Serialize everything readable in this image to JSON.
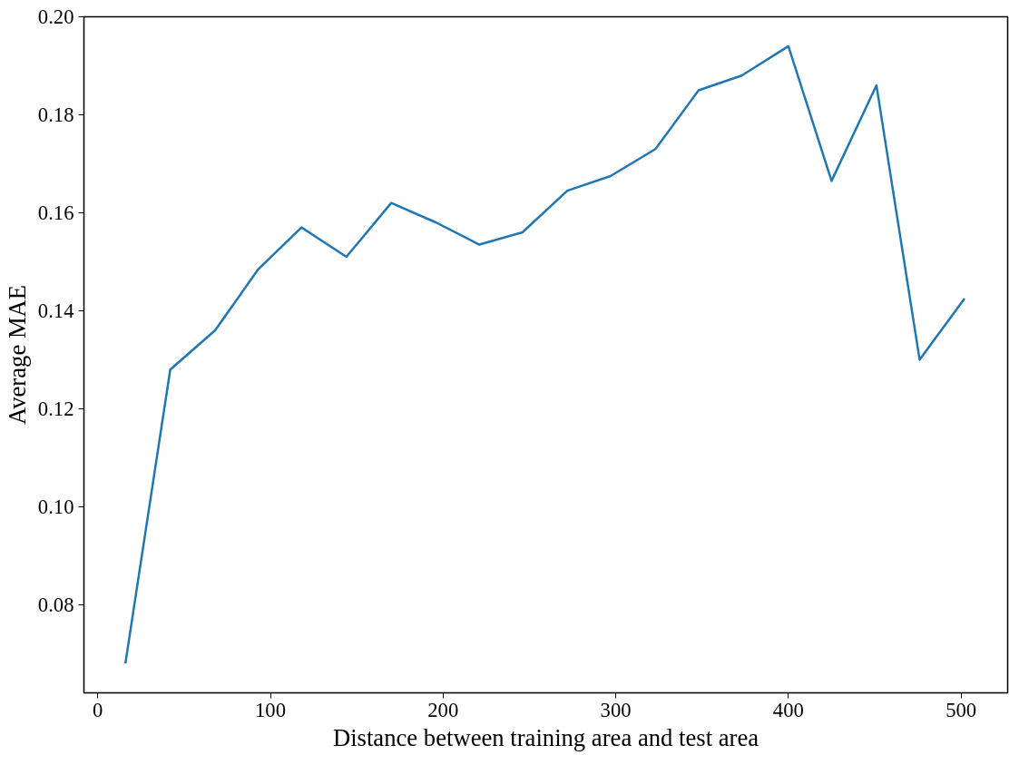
{
  "chart_data": {
    "type": "line",
    "xlabel": "Distance between training area and test area",
    "ylabel": "Average MAE",
    "x": [
      16,
      42,
      68,
      93,
      118,
      144,
      170,
      196,
      221,
      246,
      272,
      297,
      323,
      348,
      373,
      400,
      425,
      451,
      476,
      502
    ],
    "series": [
      {
        "color": "#1f77b4",
        "values": [
          0.068,
          0.128,
          0.136,
          0.1485,
          0.157,
          0.151,
          0.162,
          0.158,
          0.1535,
          0.156,
          0.1645,
          0.1675,
          0.173,
          0.185,
          0.188,
          0.194,
          0.1665,
          0.186,
          0.13,
          0.1425
        ]
      }
    ],
    "xlim": [
      -8,
      527
    ],
    "ylim": [
      0.062,
      0.2
    ],
    "xticks": [
      0,
      100,
      200,
      300,
      400,
      500
    ],
    "yticks": [
      {
        "value": 0.08,
        "label": "0.08"
      },
      {
        "value": 0.1,
        "label": "0.10"
      },
      {
        "value": 0.12,
        "label": "0.12"
      },
      {
        "value": 0.14,
        "label": "0.14"
      },
      {
        "value": 0.16,
        "label": "0.16"
      },
      {
        "value": 0.18,
        "label": "0.18"
      },
      {
        "value": 0.2,
        "label": "0.20"
      }
    ],
    "grid": false,
    "marker": "none",
    "line_style": "solid"
  }
}
